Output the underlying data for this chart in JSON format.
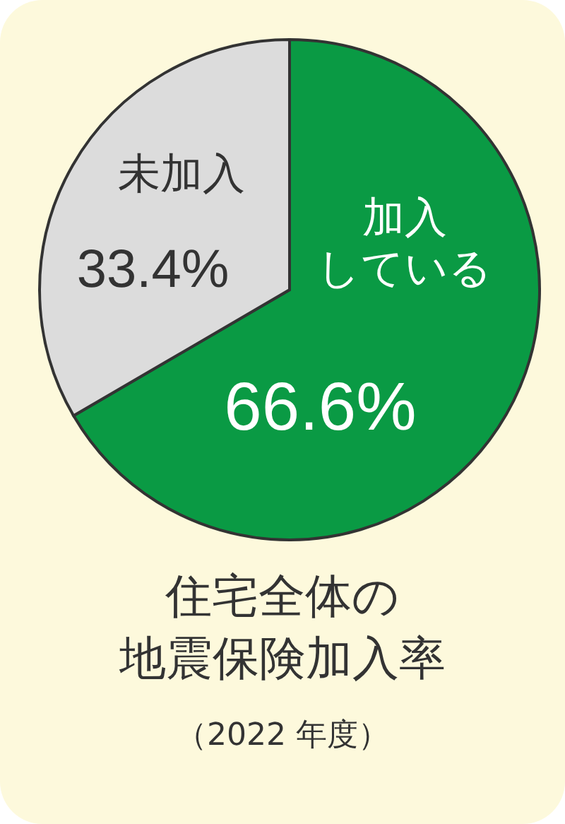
{
  "chart_data": {
    "type": "pie",
    "title": "住宅全体の",
    "subtitle": "地震保険加入率",
    "annotations": [
      "（2022 年度）"
    ],
    "categories": [
      "加入している",
      "未加入"
    ],
    "values": [
      66.6,
      33.4
    ],
    "colors": [
      "#0a9a44",
      "#dcdcdc"
    ],
    "value_labels": [
      "66.6%",
      "33.4%"
    ]
  }
}
